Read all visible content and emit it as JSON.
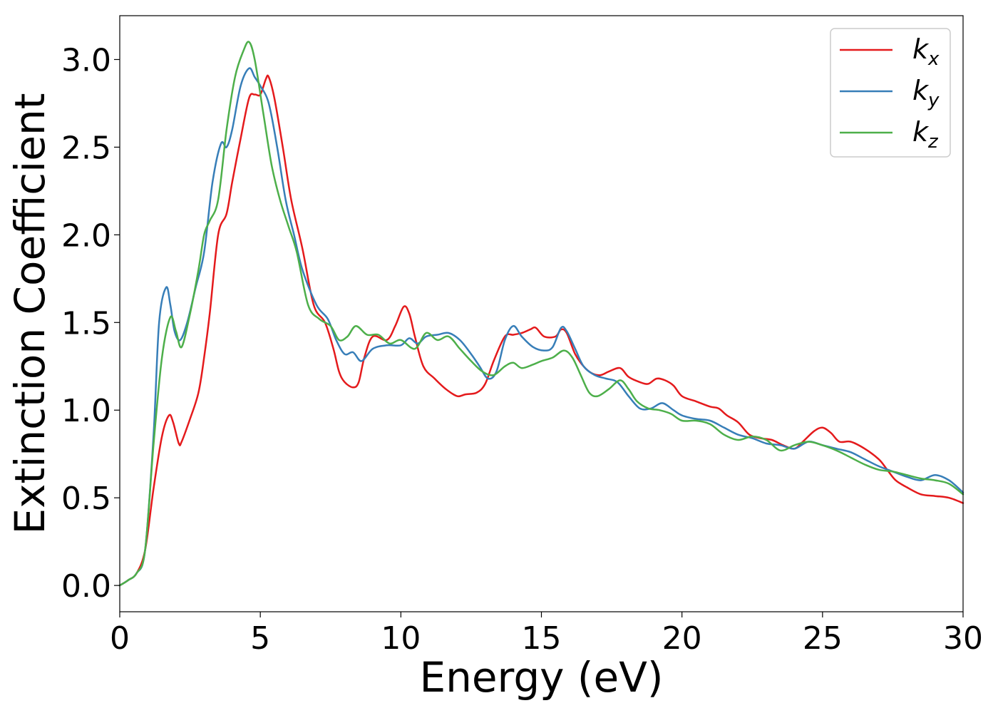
{
  "chart_data": {
    "type": "line",
    "xlabel": "Energy (eV)",
    "ylabel": "Extinction Coefficient",
    "xlim": [
      0,
      30
    ],
    "ylim": [
      -0.15,
      3.25
    ],
    "xticks": [
      0,
      5,
      10,
      15,
      20,
      25,
      30
    ],
    "xtick_labels": [
      "0",
      "5",
      "10",
      "15",
      "20",
      "25",
      "30"
    ],
    "yticks": [
      0.0,
      0.5,
      1.0,
      1.5,
      2.0,
      2.5,
      3.0
    ],
    "ytick_labels": [
      "0.0",
      "0.5",
      "1.0",
      "1.5",
      "2.0",
      "2.5",
      "3.0"
    ],
    "grid": false,
    "legend_position": "top-right",
    "series": [
      {
        "name": "k",
        "subscript": "x",
        "color": "#e41a1c",
        "x": [
          0,
          0.3,
          0.6,
          0.9,
          1.2,
          1.5,
          1.75,
          1.9,
          2.1,
          2.2,
          2.5,
          2.8,
          3.0,
          3.2,
          3.5,
          3.8,
          4.0,
          4.3,
          4.6,
          4.8,
          5.0,
          5.2,
          5.3,
          5.5,
          5.8,
          6.1,
          6.5,
          6.9,
          7.3,
          7.6,
          7.8,
          8.0,
          8.3,
          8.5,
          8.7,
          9.0,
          9.5,
          9.8,
          10.1,
          10.3,
          10.5,
          10.8,
          11.2,
          11.6,
          12.0,
          12.3,
          12.7,
          13.0,
          13.3,
          13.7,
          14.0,
          14.3,
          14.6,
          14.8,
          15.1,
          15.5,
          15.7,
          15.9,
          16.2,
          16.5,
          16.8,
          17.1,
          17.4,
          17.8,
          18.1,
          18.5,
          18.8,
          19.1,
          19.4,
          19.7,
          20.0,
          20.5,
          21.0,
          21.3,
          21.6,
          22.0,
          22.4,
          22.8,
          23.2,
          23.6,
          24.0,
          24.3,
          24.7,
          25.0,
          25.3,
          25.6,
          26.0,
          26.5,
          27.0,
          27.3,
          27.6,
          28.0,
          28.5,
          29.0,
          29.5,
          30.0
        ],
        "y": [
          0.0,
          0.03,
          0.07,
          0.2,
          0.55,
          0.85,
          0.97,
          0.93,
          0.81,
          0.82,
          0.95,
          1.1,
          1.3,
          1.55,
          2.0,
          2.12,
          2.3,
          2.55,
          2.78,
          2.8,
          2.8,
          2.89,
          2.9,
          2.78,
          2.5,
          2.2,
          1.92,
          1.6,
          1.5,
          1.35,
          1.22,
          1.16,
          1.13,
          1.16,
          1.3,
          1.42,
          1.4,
          1.48,
          1.59,
          1.55,
          1.42,
          1.25,
          1.18,
          1.12,
          1.08,
          1.09,
          1.1,
          1.15,
          1.28,
          1.42,
          1.43,
          1.44,
          1.46,
          1.47,
          1.42,
          1.42,
          1.46,
          1.44,
          1.32,
          1.25,
          1.21,
          1.2,
          1.22,
          1.24,
          1.19,
          1.16,
          1.15,
          1.18,
          1.17,
          1.14,
          1.08,
          1.05,
          1.02,
          1.01,
          0.97,
          0.93,
          0.86,
          0.84,
          0.83,
          0.8,
          0.78,
          0.82,
          0.88,
          0.9,
          0.87,
          0.82,
          0.82,
          0.78,
          0.72,
          0.66,
          0.6,
          0.56,
          0.52,
          0.51,
          0.5,
          0.47
        ]
      },
      {
        "name": "k",
        "subscript": "y",
        "color": "#377eb8",
        "x": [
          0,
          0.3,
          0.6,
          0.9,
          1.2,
          1.4,
          1.65,
          1.8,
          1.95,
          2.15,
          2.4,
          2.7,
          3.0,
          3.3,
          3.6,
          3.8,
          4.0,
          4.3,
          4.6,
          4.8,
          5.0,
          5.3,
          5.6,
          5.9,
          6.2,
          6.5,
          7.0,
          7.4,
          7.7,
          8.0,
          8.3,
          8.6,
          9.0,
          9.5,
          10.0,
          10.3,
          10.6,
          10.9,
          11.3,
          11.7,
          12.1,
          12.5,
          12.8,
          13.1,
          13.4,
          13.7,
          14.0,
          14.3,
          14.7,
          15.1,
          15.4,
          15.7,
          15.9,
          16.2,
          16.5,
          16.9,
          17.3,
          17.7,
          18.1,
          18.5,
          18.9,
          19.3,
          19.7,
          20.0,
          20.5,
          21.0,
          21.5,
          22.0,
          22.5,
          23.0,
          23.5,
          24.0,
          24.5,
          25.0,
          25.5,
          26.0,
          26.5,
          27.0,
          27.5,
          28.0,
          28.5,
          29.0,
          29.5,
          30.0
        ],
        "y": [
          0.0,
          0.03,
          0.07,
          0.2,
          0.85,
          1.5,
          1.7,
          1.6,
          1.45,
          1.4,
          1.5,
          1.7,
          1.9,
          2.3,
          2.52,
          2.5,
          2.6,
          2.85,
          2.95,
          2.9,
          2.85,
          2.75,
          2.5,
          2.2,
          2.0,
          1.8,
          1.6,
          1.52,
          1.4,
          1.32,
          1.33,
          1.28,
          1.35,
          1.37,
          1.37,
          1.41,
          1.38,
          1.42,
          1.43,
          1.44,
          1.4,
          1.32,
          1.25,
          1.18,
          1.22,
          1.4,
          1.48,
          1.42,
          1.36,
          1.34,
          1.36,
          1.47,
          1.45,
          1.35,
          1.25,
          1.2,
          1.18,
          1.16,
          1.08,
          1.01,
          1.01,
          1.04,
          1.0,
          0.97,
          0.95,
          0.94,
          0.9,
          0.86,
          0.84,
          0.81,
          0.8,
          0.78,
          0.82,
          0.8,
          0.78,
          0.76,
          0.72,
          0.68,
          0.65,
          0.62,
          0.6,
          0.63,
          0.6,
          0.53
        ]
      },
      {
        "name": "k",
        "subscript": "z",
        "color": "#4daf4a",
        "x": [
          0,
          0.3,
          0.6,
          0.9,
          1.2,
          1.5,
          1.8,
          2.0,
          2.2,
          2.5,
          2.8,
          3.0,
          3.2,
          3.5,
          3.8,
          4.1,
          4.4,
          4.6,
          4.8,
          5.1,
          5.4,
          5.7,
          6.0,
          6.3,
          6.7,
          7.1,
          7.5,
          7.8,
          8.1,
          8.4,
          8.8,
          9.2,
          9.6,
          10.0,
          10.5,
          10.9,
          11.3,
          11.7,
          12.1,
          12.5,
          12.9,
          13.3,
          13.7,
          14.0,
          14.3,
          14.7,
          15.0,
          15.4,
          15.8,
          16.1,
          16.4,
          16.7,
          17.0,
          17.4,
          17.8,
          18.1,
          18.4,
          18.8,
          19.2,
          19.6,
          20.0,
          20.5,
          21.0,
          21.5,
          22.0,
          22.5,
          23.0,
          23.5,
          24.0,
          24.5,
          25.0,
          25.5,
          26.0,
          26.5,
          27.0,
          27.5,
          28.0,
          28.5,
          29.0,
          29.5,
          30.0
        ],
        "y": [
          0.0,
          0.03,
          0.07,
          0.2,
          0.8,
          1.3,
          1.53,
          1.45,
          1.36,
          1.55,
          1.8,
          2.0,
          2.08,
          2.2,
          2.6,
          2.9,
          3.05,
          3.1,
          3.0,
          2.7,
          2.4,
          2.2,
          2.05,
          1.9,
          1.6,
          1.52,
          1.48,
          1.4,
          1.42,
          1.48,
          1.43,
          1.43,
          1.38,
          1.4,
          1.35,
          1.44,
          1.4,
          1.42,
          1.35,
          1.28,
          1.22,
          1.2,
          1.25,
          1.27,
          1.24,
          1.26,
          1.28,
          1.3,
          1.34,
          1.3,
          1.2,
          1.1,
          1.08,
          1.12,
          1.17,
          1.12,
          1.05,
          1.01,
          1.0,
          0.98,
          0.94,
          0.94,
          0.92,
          0.86,
          0.83,
          0.85,
          0.83,
          0.77,
          0.8,
          0.82,
          0.8,
          0.77,
          0.73,
          0.69,
          0.66,
          0.65,
          0.63,
          0.61,
          0.6,
          0.58,
          0.52
        ]
      }
    ]
  }
}
